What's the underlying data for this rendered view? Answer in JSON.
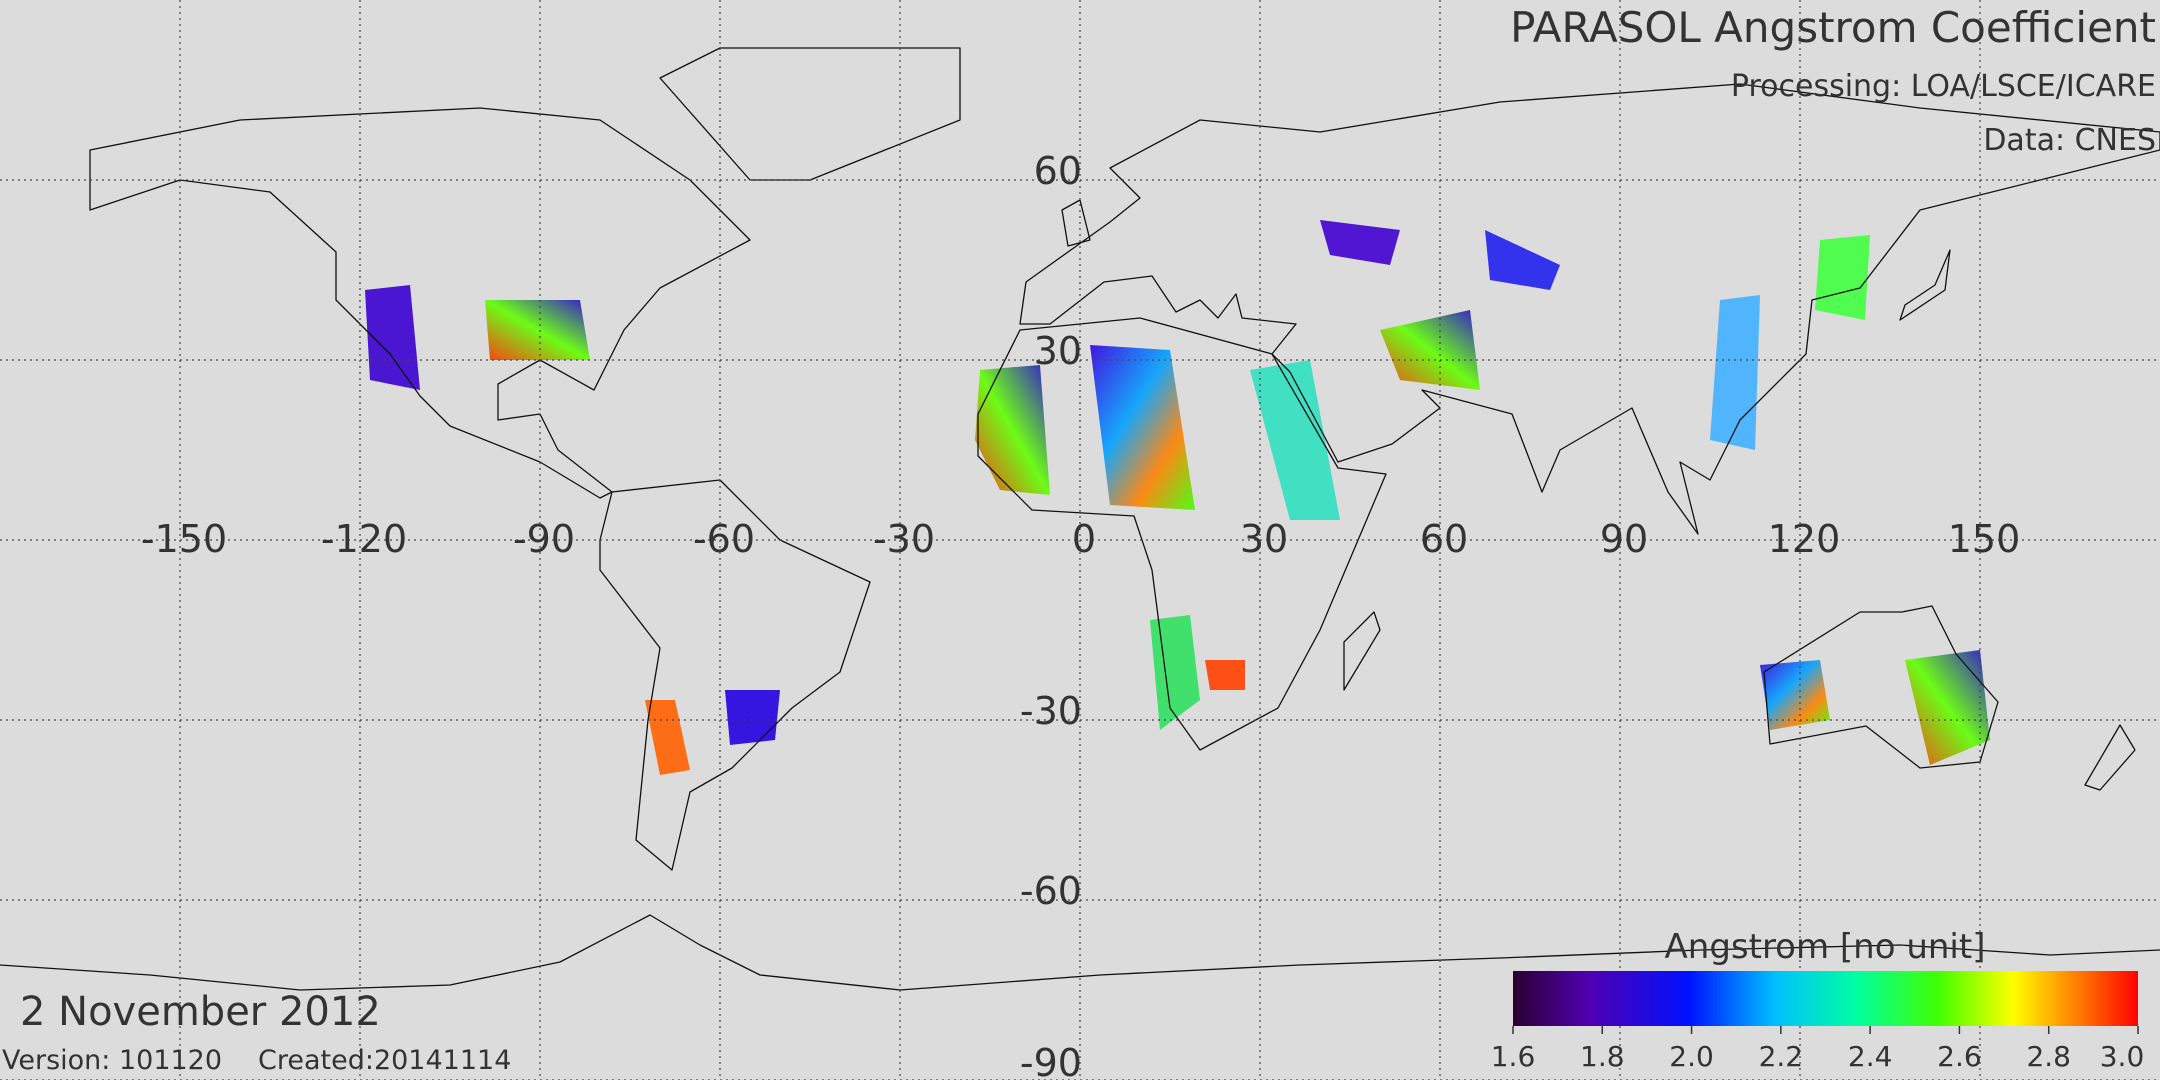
{
  "header": {
    "title": "PARASOL Angstrom Coefficient",
    "processing": "Processing: LOA/LSCE/ICARE",
    "data_source": "Data: CNES"
  },
  "map": {
    "lon_range": [
      -180,
      180
    ],
    "lat_range": [
      -90,
      90
    ],
    "lon_ticks": [
      -150,
      -120,
      -90,
      -60,
      -30,
      0,
      30,
      60,
      90,
      120,
      150
    ],
    "lat_ticks": [
      60,
      30,
      -30,
      -60,
      -90
    ]
  },
  "colorbar": {
    "label": "Angstrom [no unit]",
    "lim": [
      1.6,
      3.0
    ],
    "ticks": [
      1.6,
      1.8,
      {
        "value": 2.0,
        "label": "2.0"
      },
      2.2,
      2.4,
      2.6,
      2.8,
      {
        "value": 3.0,
        "label": "3.0"
      }
    ]
  },
  "footer": {
    "date": "2 November 2012",
    "version": "Version: 101120",
    "created": "Created:20141114"
  }
}
